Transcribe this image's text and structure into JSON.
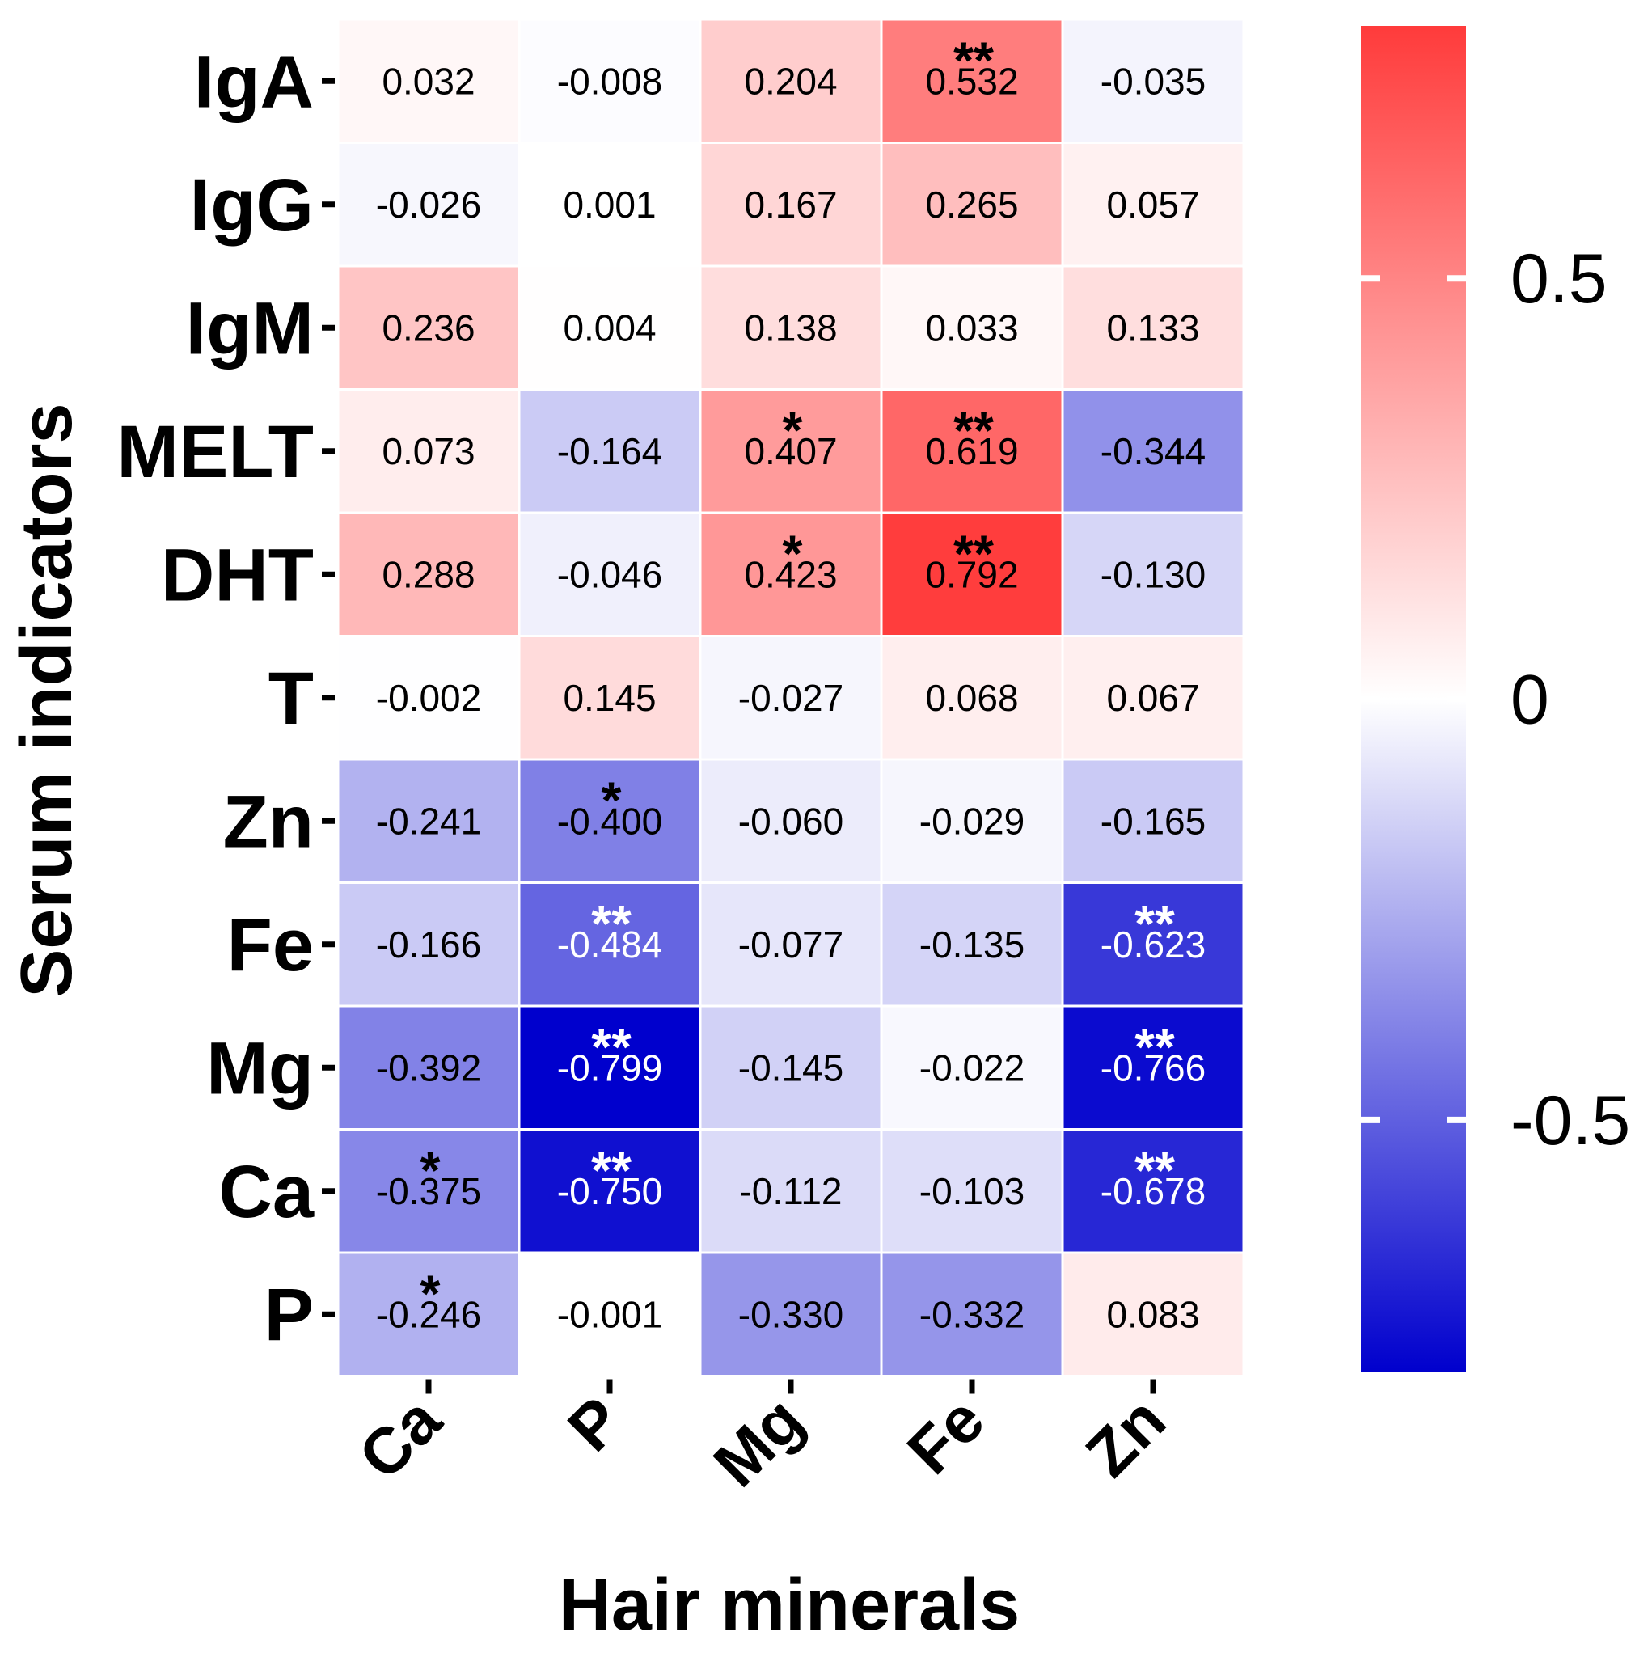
{
  "chart_data": {
    "type": "heatmap",
    "xlabel": "Hair minerals",
    "ylabel": "Serum indicators",
    "columns": [
      "Ca",
      "P",
      "Mg",
      "Fe",
      "Zn"
    ],
    "rows": [
      "IgA",
      "IgG",
      "IgM",
      "MELT",
      "DHT",
      "T",
      "Zn",
      "Fe",
      "Mg",
      "Ca",
      "P"
    ],
    "values": [
      [
        0.032,
        -0.008,
        0.204,
        0.532,
        -0.035
      ],
      [
        -0.026,
        0.001,
        0.167,
        0.265,
        0.057
      ],
      [
        0.236,
        0.004,
        0.138,
        0.033,
        0.133
      ],
      [
        0.073,
        -0.164,
        0.407,
        0.619,
        -0.344
      ],
      [
        0.288,
        -0.046,
        0.423,
        0.792,
        -0.13
      ],
      [
        -0.002,
        0.145,
        -0.027,
        0.068,
        0.067
      ],
      [
        -0.241,
        -0.4,
        -0.06,
        -0.029,
        -0.165
      ],
      [
        -0.166,
        -0.484,
        -0.077,
        -0.135,
        -0.623
      ],
      [
        -0.392,
        -0.799,
        -0.145,
        -0.022,
        -0.766
      ],
      [
        -0.375,
        -0.75,
        -0.112,
        -0.103,
        -0.678
      ],
      [
        -0.246,
        -0.001,
        -0.33,
        -0.332,
        0.083
      ]
    ],
    "labels": [
      [
        "0.032",
        "-0.008",
        "0.204",
        "0.532",
        "-0.035"
      ],
      [
        "-0.026",
        "0.001",
        "0.167",
        "0.265",
        "0.057"
      ],
      [
        "0.236",
        "0.004",
        "0.138",
        "0.033",
        "0.133"
      ],
      [
        "0.073",
        "-0.164",
        "0.407",
        "0.619",
        "-0.344"
      ],
      [
        "0.288",
        "-0.046",
        "0.423",
        "0.792",
        "-0.130"
      ],
      [
        "-0.002",
        "0.145",
        "-0.027",
        "0.068",
        "0.067"
      ],
      [
        "-0.241",
        "-0.400",
        "-0.060",
        "-0.029",
        "-0.165"
      ],
      [
        "-0.166",
        "-0.484",
        "-0.077",
        "-0.135",
        "-0.623"
      ],
      [
        "-0.392",
        "-0.799",
        "-0.145",
        "-0.022",
        "-0.766"
      ],
      [
        "-0.375",
        "-0.750",
        "-0.112",
        "-0.103",
        "-0.678"
      ],
      [
        "-0.246",
        "-0.001",
        "-0.330",
        "-0.332",
        "0.083"
      ]
    ],
    "significance": [
      [
        "",
        "",
        "",
        "**",
        ""
      ],
      [
        "",
        "",
        "",
        "",
        ""
      ],
      [
        "",
        "",
        "",
        "",
        ""
      ],
      [
        "",
        "",
        "*",
        "**",
        ""
      ],
      [
        "",
        "",
        "*",
        "**",
        ""
      ],
      [
        "",
        "",
        "",
        "",
        ""
      ],
      [
        "",
        "*",
        "",
        "",
        ""
      ],
      [
        "",
        "**",
        "",
        "",
        "**"
      ],
      [
        "",
        "**",
        "",
        "",
        "**"
      ],
      [
        "*",
        "**",
        "",
        "",
        "**"
      ],
      [
        "*",
        "",
        "",
        "",
        ""
      ]
    ],
    "colorbar": {
      "range": [
        -0.8,
        0.8
      ],
      "ticks": [
        0.5,
        0,
        -0.5
      ],
      "tick_labels": [
        "0.5",
        "0",
        "-0.5"
      ],
      "colors": {
        "low": "#0000CD",
        "mid": "#FFFFFF",
        "high": "#FF3B3B"
      }
    }
  }
}
